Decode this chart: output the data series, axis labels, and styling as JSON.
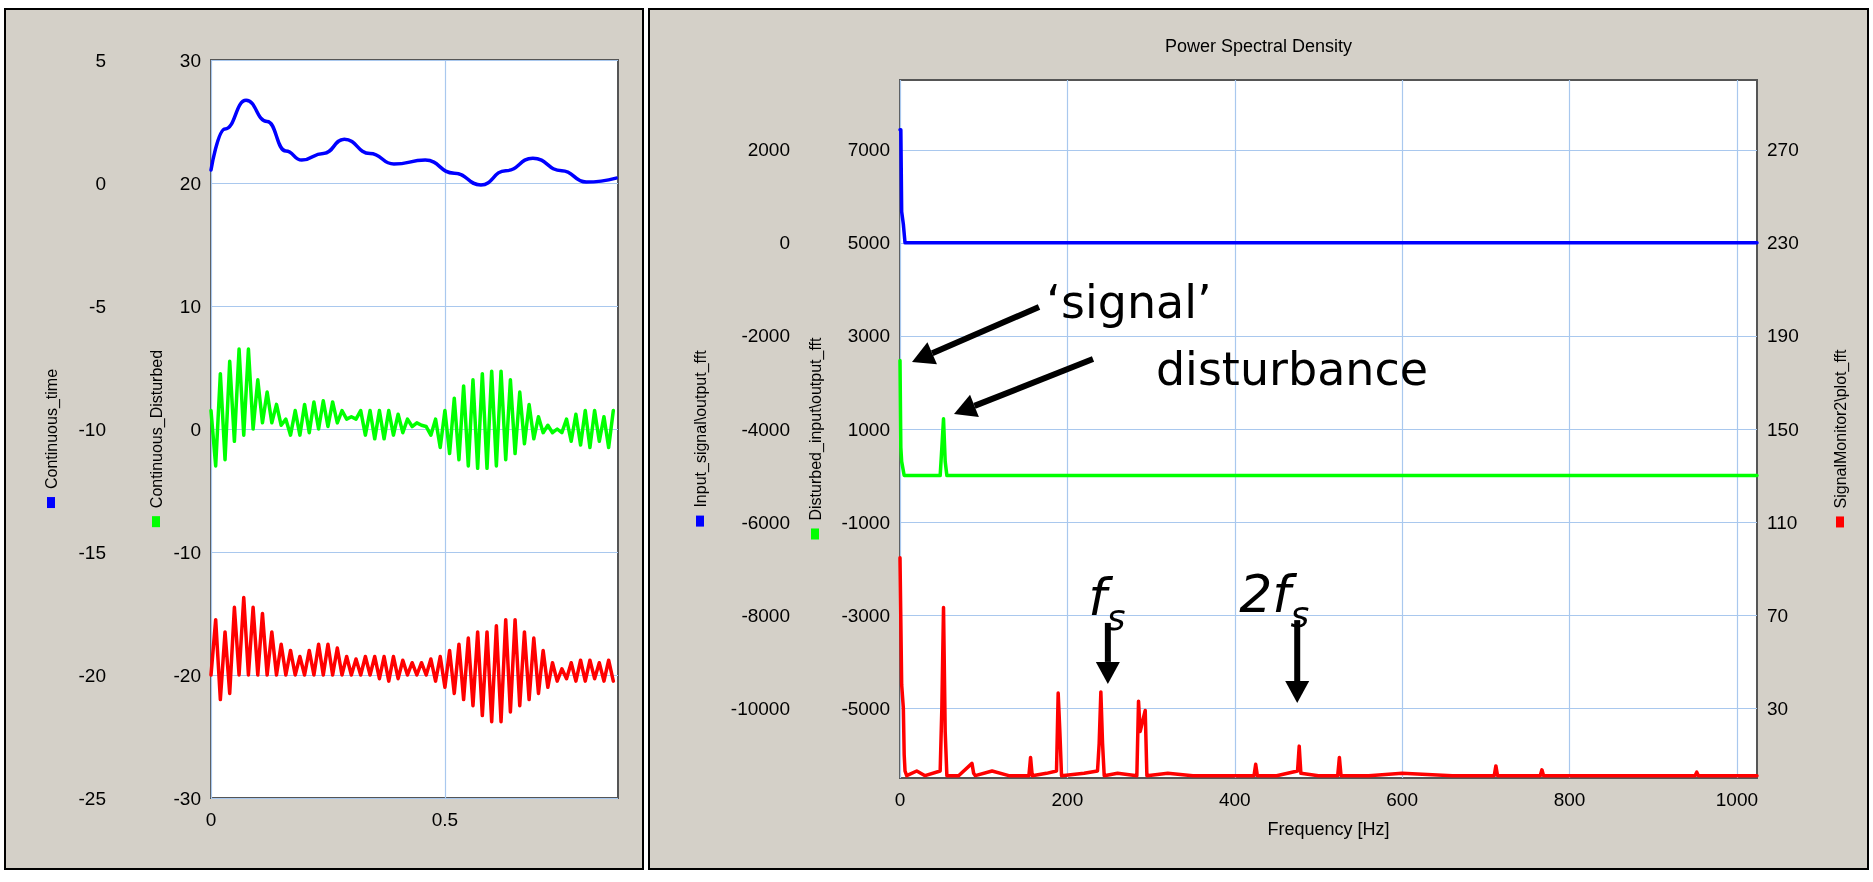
{
  "chart_data": [
    {
      "type": "line",
      "ylabel": "Continuous_time",
      "y2label": "Continuous_Disturbed",
      "xlim": [
        0,
        0.87
      ],
      "xticks": [
        0,
        0.5
      ],
      "ylim": [
        -25,
        5
      ],
      "yticks": [
        -25,
        -20,
        -15,
        -10,
        -5,
        0,
        5
      ],
      "y2lim": [
        -30,
        30
      ],
      "y2ticks": [
        -30,
        -20,
        -10,
        0,
        10,
        20,
        30
      ],
      "grid": true,
      "marker": "none",
      "line_style": "solid",
      "series": [
        {
          "color": "#0000ff",
          "axis": "y",
          "x": [
            0,
            0.03,
            0.075,
            0.12,
            0.16,
            0.194,
            0.24,
            0.285,
            0.34,
            0.391,
            0.458,
            0.52,
            0.577,
            0.63,
            0.688,
            0.75,
            0.802,
            0.866
          ],
          "values": [
            0.53,
            2.2,
            3.36,
            2.5,
            1.3,
            0.93,
            1.2,
            1.78,
            1.2,
            0.77,
            0.93,
            0.4,
            -0.08,
            0.5,
            1.01,
            0.5,
            0.04,
            0.2
          ]
        },
        {
          "color": "#00ff00",
          "axis": "y2",
          "x": [
            0,
            0.01,
            0.02,
            0.03,
            0.04,
            0.05,
            0.06,
            0.07,
            0.08,
            0.09,
            0.1,
            0.11,
            0.12,
            0.13,
            0.14,
            0.15,
            0.16,
            0.17,
            0.18,
            0.19,
            0.2,
            0.21,
            0.22,
            0.23,
            0.24,
            0.25,
            0.26,
            0.27,
            0.28,
            0.29,
            0.3,
            0.31,
            0.32,
            0.33,
            0.34,
            0.35,
            0.36,
            0.37,
            0.38,
            0.39,
            0.4,
            0.41,
            0.42,
            0.43,
            0.44,
            0.45,
            0.46,
            0.47,
            0.48,
            0.49,
            0.5,
            0.51,
            0.52,
            0.53,
            0.54,
            0.55,
            0.56,
            0.57,
            0.58,
            0.59,
            0.6,
            0.61,
            0.62,
            0.63,
            0.64,
            0.65,
            0.66,
            0.67,
            0.68,
            0.69,
            0.7,
            0.71,
            0.72,
            0.73,
            0.74,
            0.75,
            0.76,
            0.77,
            0.78,
            0.79,
            0.8,
            0.81,
            0.82,
            0.83,
            0.84,
            0.85,
            0.86
          ],
          "values": [
            1.5,
            -3,
            4.5,
            -2.5,
            5.5,
            -1,
            6.5,
            -0.5,
            6.5,
            0,
            4,
            0.5,
            3,
            0.5,
            2,
            0.3,
            0.8,
            -0.5,
            1.5,
            -0.5,
            2,
            -0.3,
            2.2,
            0,
            2.3,
            0.2,
            2.2,
            0.5,
            1.5,
            0.8,
            1,
            0.8,
            1.5,
            -0.5,
            1.5,
            -0.8,
            1.5,
            -0.8,
            1.5,
            -0.5,
            1.2,
            -0.3,
            0.8,
            0.2,
            0.5,
            0.3,
            0.2,
            -0.5,
            0.8,
            -1.5,
            1.5,
            -2,
            2.5,
            -2.5,
            3.5,
            -3,
            4,
            -3.2,
            4.5,
            -3.2,
            4.7,
            -3,
            4.7,
            -2.5,
            4,
            -2,
            3,
            -1.2,
            2,
            -0.8,
            1,
            -0.3,
            0.3,
            -0.3,
            0,
            -0.3,
            0.8,
            -1,
            1.2,
            -1.3,
            1.5,
            -1.5,
            1.5,
            -1,
            1,
            -1.5,
            1.5
          ]
        },
        {
          "color": "#ff0000",
          "axis": "y2",
          "x": [
            0,
            0.01,
            0.02,
            0.03,
            0.04,
            0.05,
            0.06,
            0.07,
            0.08,
            0.09,
            0.1,
            0.11,
            0.12,
            0.13,
            0.14,
            0.15,
            0.16,
            0.17,
            0.18,
            0.19,
            0.2,
            0.21,
            0.22,
            0.23,
            0.24,
            0.25,
            0.26,
            0.27,
            0.28,
            0.29,
            0.3,
            0.31,
            0.32,
            0.33,
            0.34,
            0.35,
            0.36,
            0.37,
            0.38,
            0.39,
            0.4,
            0.41,
            0.42,
            0.43,
            0.44,
            0.45,
            0.46,
            0.47,
            0.48,
            0.49,
            0.5,
            0.51,
            0.52,
            0.53,
            0.54,
            0.55,
            0.56,
            0.57,
            0.58,
            0.59,
            0.6,
            0.61,
            0.62,
            0.63,
            0.64,
            0.65,
            0.66,
            0.67,
            0.68,
            0.69,
            0.7,
            0.71,
            0.72,
            0.73,
            0.74,
            0.75,
            0.76,
            0.77,
            0.78,
            0.79,
            0.8,
            0.81,
            0.82,
            0.83,
            0.84,
            0.85,
            0.86
          ],
          "values": [
            -20,
            -15.5,
            -22,
            -16.5,
            -21.5,
            -14.5,
            -20,
            -13.7,
            -20,
            -14.5,
            -20,
            -15,
            -20,
            -16.5,
            -20,
            -17.5,
            -20,
            -18,
            -20,
            -18.5,
            -20,
            -18,
            -20,
            -17.5,
            -20,
            -17.5,
            -20,
            -17.8,
            -20,
            -18.5,
            -20,
            -18.7,
            -20,
            -18.5,
            -20,
            -18.5,
            -20.3,
            -18.5,
            -20.5,
            -18.5,
            -20.3,
            -18.8,
            -20,
            -19,
            -20,
            -19,
            -20,
            -18.7,
            -20.5,
            -18.5,
            -21,
            -18,
            -21.5,
            -17.5,
            -22,
            -17,
            -22.5,
            -16.5,
            -23.3,
            -16.5,
            -23.8,
            -16,
            -23.8,
            -15.5,
            -23,
            -15.5,
            -22.5,
            -16.5,
            -22,
            -17,
            -21.5,
            -18,
            -21,
            -19,
            -20.5,
            -19.5,
            -20.3,
            -19,
            -20.5,
            -18.8,
            -20.5,
            -18.8,
            -20.3,
            -19,
            -20.5,
            -18.8,
            -20.5
          ]
        }
      ]
    },
    {
      "type": "line",
      "title": "Power Spectral Density",
      "xlabel": "Frequency [Hz]",
      "ylabel": "Input_signal\\output_fft",
      "y2label": "Disturbed_input\\output_fft",
      "y3label": "SignalMonitor2\\plot_fft",
      "xlim": [
        0,
        1024
      ],
      "xticks": [
        0,
        200,
        400,
        600,
        800,
        1000
      ],
      "ylim": [
        -11500,
        3500
      ],
      "yticks": [
        -10000,
        -8000,
        -6000,
        -4000,
        -2000,
        0,
        2000
      ],
      "y2lim": [
        -6500,
        8500
      ],
      "y2ticks": [
        -5000,
        -3000,
        -1000,
        1000,
        3000,
        5000,
        7000
      ],
      "y3lim": [
        0,
        300
      ],
      "y3ticks": [
        30,
        70,
        110,
        150,
        190,
        230,
        270
      ],
      "grid": true,
      "marker": "none",
      "line_style": "solid",
      "series": [
        {
          "color": "#0000ff",
          "axis": "y",
          "x": [
            0,
            1,
            2,
            4,
            6,
            1024
          ],
          "values": [
            2430,
            2430,
            670,
            400,
            0,
            0
          ]
        },
        {
          "color": "#00ff00",
          "axis": "y2",
          "x": [
            0,
            1,
            2,
            5,
            48,
            50,
            52,
            54,
            56,
            1024
          ],
          "values": [
            2470,
            600,
            300,
            0,
            0,
            600,
            1220,
            300,
            0,
            0
          ]
        },
        {
          "color": "#ff0000",
          "axis": "y3",
          "x": [
            0,
            2,
            4,
            5,
            6,
            8,
            20,
            30,
            48,
            50,
            52,
            54,
            56,
            70,
            86,
            88,
            90,
            110,
            130,
            154,
            156,
            158,
            175,
            187,
            189,
            191,
            193,
            220,
            236,
            238,
            240,
            242,
            244,
            260,
            283,
            285,
            287,
            293,
            295,
            320,
            350,
            423,
            425,
            427,
            450,
            475,
            477,
            479,
            500,
            523,
            525,
            527,
            560,
            600,
            660,
            710,
            712,
            714,
            765,
            767,
            769,
            800,
            860,
            950,
            952,
            954,
            1024
          ],
          "values": [
            94.7,
            40,
            30,
            10,
            3,
            1,
            3,
            1,
            3,
            30,
            73.3,
            20,
            1,
            1,
            6.3,
            2,
            1,
            3,
            1,
            1,
            8.8,
            1,
            2,
            3,
            36.5,
            20,
            1,
            2,
            3,
            15,
            37,
            15,
            1,
            2,
            1,
            33,
            20,
            29,
            1,
            2,
            1,
            1,
            5.9,
            1,
            1,
            3,
            13.7,
            2,
            1,
            1,
            8.8,
            1,
            1,
            2,
            1,
            1,
            5.2,
            1,
            1,
            3.5,
            1,
            1,
            1,
            1,
            2.5,
            1,
            1
          ]
        }
      ],
      "annotations": [
        "‘signal’",
        "disturbance",
        {
          "text": "f$_{s}$",
          "x": 240,
          "y": -9650
        },
        {
          "text": "2f$_{s}$",
          "x": 477,
          "y": -10815
        }
      ]
    }
  ]
}
